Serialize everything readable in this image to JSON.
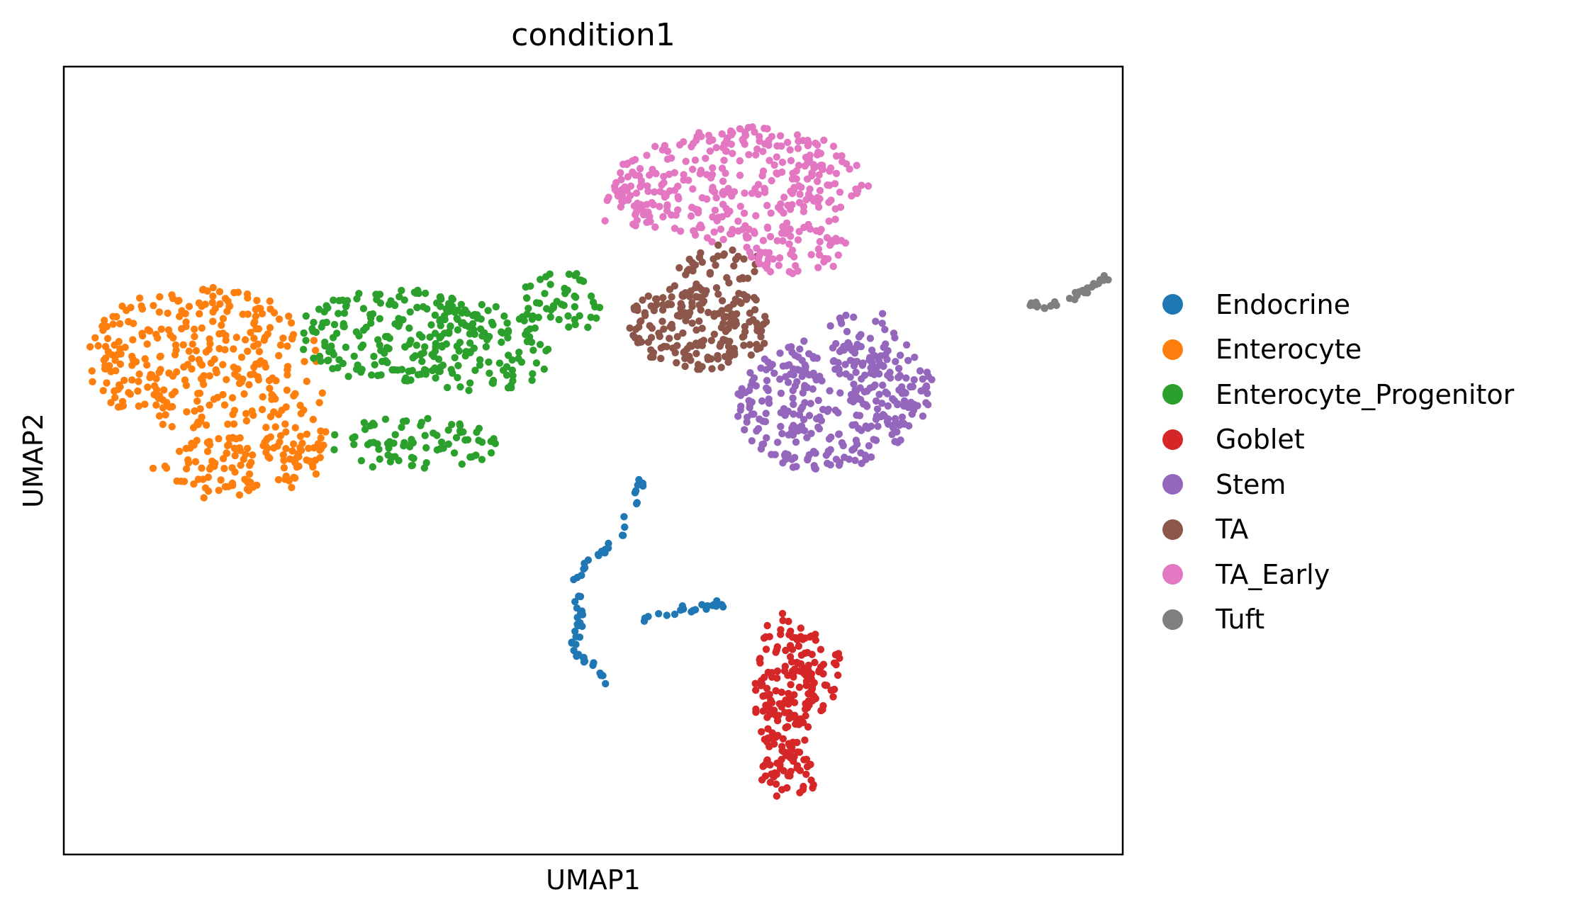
{
  "chart_data": {
    "type": "scatter",
    "title": "condition1",
    "xlabel": "UMAP1",
    "ylabel": "UMAP2",
    "xlim": [
      0,
      100
    ],
    "ylim": [
      0,
      100
    ],
    "grid": false,
    "ticks": false,
    "legend_position": "right",
    "series": [
      {
        "name": "Endocrine",
        "color": "#1f77b4",
        "clusters": [
          {
            "path": [
              [
                54.5,
                47.5
              ],
              [
                53.8,
                44.5
              ],
              [
                53.2,
                42
              ],
              [
                52.5,
                40
              ],
              [
                51,
                38.5
              ],
              [
                49.5,
                37
              ],
              [
                48.5,
                35
              ],
              [
                48.5,
                32.5
              ],
              [
                48.8,
                30.5
              ],
              [
                48.5,
                28
              ],
              [
                48.2,
                25.5
              ],
              [
                49.2,
                24.5
              ],
              [
                50.5,
                23.5
              ],
              [
                51.3,
                22
              ],
              [
                51.3,
                20.5
              ]
            ],
            "count": 60,
            "spread": 0.7
          },
          {
            "path": [
              [
                54.5,
                30
              ],
              [
                56.5,
                30.5
              ],
              [
                58.5,
                31
              ],
              [
                60.5,
                31.5
              ],
              [
                62,
                31.8
              ],
              [
                63.8,
                31.2
              ]
            ],
            "count": 22,
            "spread": 0.6
          }
        ]
      },
      {
        "name": "Enterocyte",
        "color": "#ff7f0e",
        "clusters": [
          {
            "cx": 13,
            "cy": 63,
            "rx": 11,
            "ry": 9,
            "count": 300
          },
          {
            "cx": 16,
            "cy": 49,
            "rx": 8,
            "ry": 4,
            "count": 110
          },
          {
            "cx": 22,
            "cy": 55,
            "rx": 3,
            "ry": 7,
            "count": 45
          }
        ]
      },
      {
        "name": "Enterocyte_Progenitor",
        "color": "#2ca02c",
        "clusters": [
          {
            "cx": 31,
            "cy": 66,
            "rx": 9,
            "ry": 6,
            "count": 180
          },
          {
            "cx": 39,
            "cy": 64,
            "rx": 7,
            "ry": 6,
            "count": 110
          },
          {
            "cx": 33,
            "cy": 52,
            "rx": 8,
            "ry": 3.5,
            "count": 80
          },
          {
            "cx": 47,
            "cy": 70,
            "rx": 4,
            "ry": 4,
            "count": 50
          }
        ]
      },
      {
        "name": "Goblet",
        "color": "#d62728",
        "clusters": [
          {
            "cx": 68,
            "cy": 21,
            "rx": 2.8,
            "ry": 10,
            "count": 150
          },
          {
            "cx": 71,
            "cy": 23,
            "rx": 2.5,
            "ry": 5,
            "count": 50
          },
          {
            "cx": 68.5,
            "cy": 10,
            "rx": 3,
            "ry": 3,
            "count": 40
          }
        ]
      },
      {
        "name": "Stem",
        "color": "#9467bd",
        "clusters": [
          {
            "cx": 72,
            "cy": 57,
            "rx": 8.5,
            "ry": 8.5,
            "count": 280
          },
          {
            "cx": 78.5,
            "cy": 59,
            "rx": 4,
            "ry": 5,
            "count": 60
          },
          {
            "cx": 76,
            "cy": 66,
            "rx": 4,
            "ry": 3,
            "count": 30
          }
        ]
      },
      {
        "name": "TA",
        "color": "#8c564b",
        "clusters": [
          {
            "cx": 60,
            "cy": 67,
            "rx": 7,
            "ry": 5.5,
            "count": 200
          },
          {
            "cx": 62,
            "cy": 75,
            "rx": 4,
            "ry": 2.5,
            "count": 35
          }
        ]
      },
      {
        "name": "TA_Early",
        "color": "#e377c2",
        "clusters": [
          {
            "cx": 64,
            "cy": 85,
            "rx": 12,
            "ry": 7.5,
            "count": 320
          },
          {
            "cx": 69,
            "cy": 77,
            "rx": 5,
            "ry": 3.5,
            "count": 60
          },
          {
            "cx": 54,
            "cy": 82,
            "rx": 3.5,
            "ry": 3,
            "count": 25
          }
        ]
      },
      {
        "name": "Tuft",
        "color": "#7f7f7f",
        "clusters": [
          {
            "path": [
              [
                91,
                70
              ],
              [
                92.5,
                69.5
              ],
              [
                94,
                70
              ],
              [
                95.5,
                71
              ],
              [
                97,
                72
              ],
              [
                98.5,
                73.5
              ]
            ],
            "count": 30,
            "spread": 0.6
          }
        ]
      }
    ]
  }
}
